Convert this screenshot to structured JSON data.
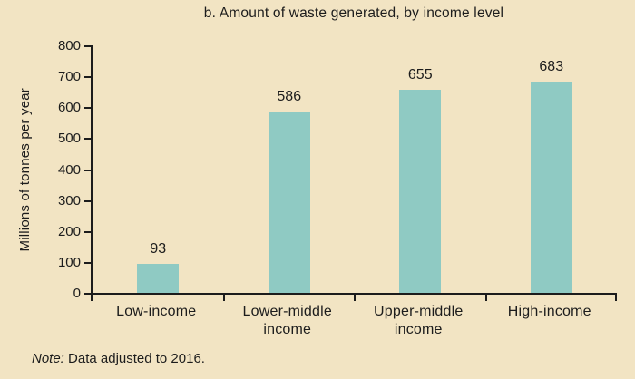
{
  "figure": {
    "note_prefix": "Note:",
    "note_text": " Data adjusted to 2016."
  },
  "chart_data": {
    "type": "bar",
    "title": "b. Amount of waste generated, by income level",
    "categories": [
      "Low-income",
      "Lower-middle income",
      "Upper-middle income",
      "High-income"
    ],
    "values": [
      93,
      586,
      655,
      683
    ],
    "value_labels": [
      "93",
      "586",
      "655",
      "683"
    ],
    "xlabel": "",
    "ylabel": "Millions of tonnes per year",
    "ylim": [
      0,
      800
    ],
    "ytick_step": 100,
    "ytick_labels": [
      "0",
      "100",
      "200",
      "300",
      "400",
      "500",
      "600",
      "700",
      "800"
    ],
    "grid": false,
    "legend": "none",
    "bar_color": "#8fcac3",
    "background_color": "#f2e4c3",
    "axis_color": "#1c1c1c",
    "note": "Note: Data adjusted to 2016."
  }
}
